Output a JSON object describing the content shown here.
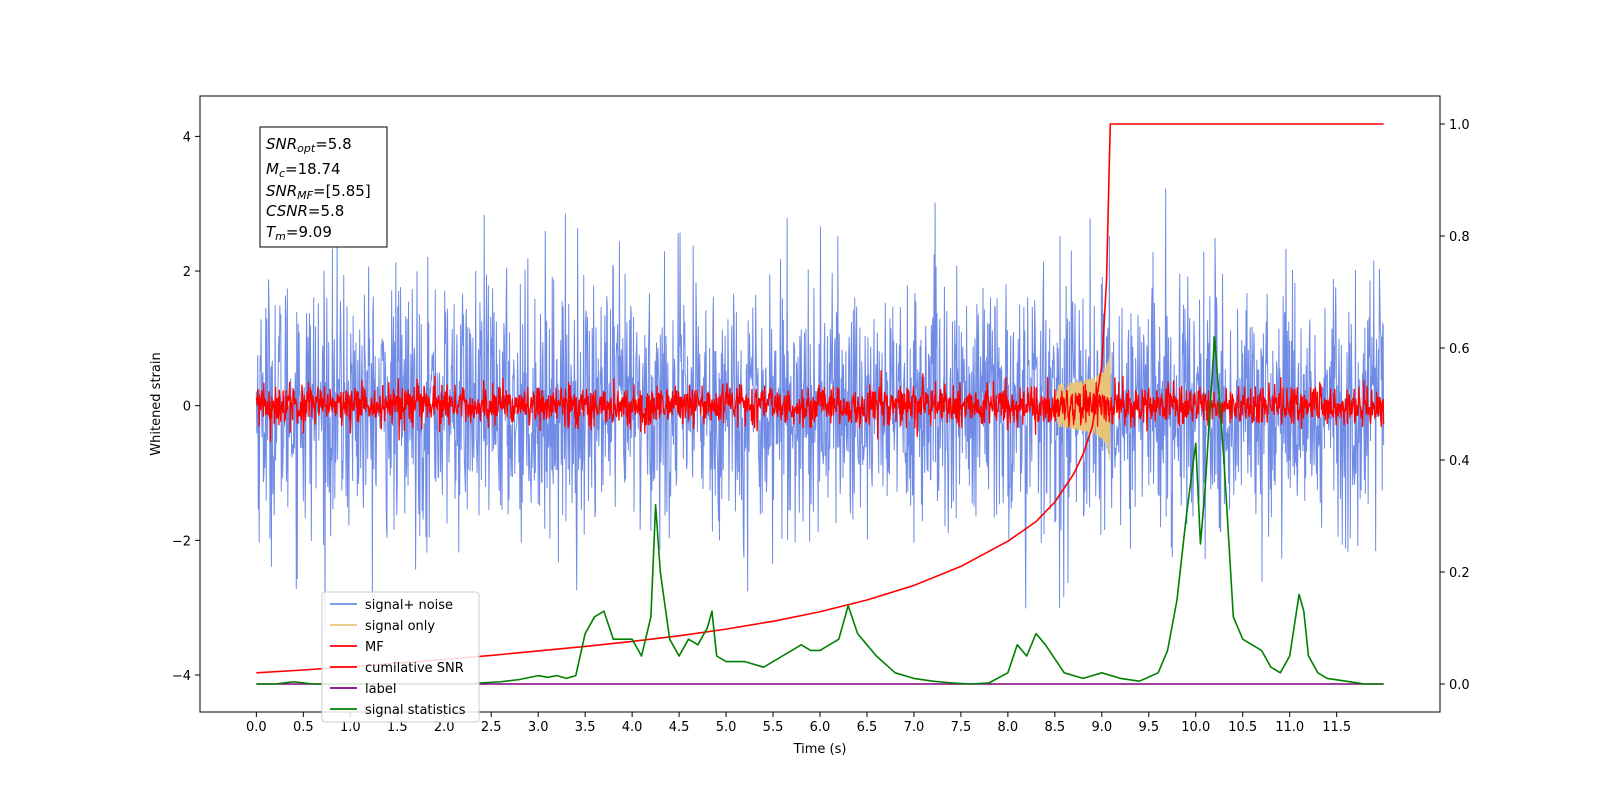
{
  "chart_data": {
    "type": "line",
    "xlabel": "Time (s)",
    "ylabel": "Whitened strain",
    "xlim": [
      -0.6,
      12.6
    ],
    "ylim": [
      -4.55,
      4.6
    ],
    "y2lim": [
      -0.05,
      1.05
    ],
    "x_ticks": [
      0.0,
      0.5,
      1.0,
      1.5,
      2.0,
      2.5,
      3.0,
      3.5,
      4.0,
      4.5,
      5.0,
      5.5,
      6.0,
      6.5,
      7.0,
      7.5,
      8.0,
      8.5,
      9.0,
      9.5,
      10.0,
      10.5,
      11.0,
      11.5
    ],
    "x_tick_labels": [
      "0.0",
      "0.5",
      "1.0",
      "1.5",
      "2.0",
      "2.5",
      "3.0",
      "3.5",
      "4.0",
      "4.5",
      "5.0",
      "5.5",
      "6.0",
      "6.5",
      "7.0",
      "7.5",
      "8.0",
      "8.5",
      "9.0",
      "9.5",
      "10.0",
      "10.5",
      "11.0",
      "11.5"
    ],
    "y_ticks": [
      -4,
      -2,
      0,
      2,
      4
    ],
    "y_tick_labels": [
      "−4",
      "−2",
      "0",
      "2",
      "4"
    ],
    "y2_ticks": [
      0.0,
      0.2,
      0.4,
      0.6,
      0.8,
      1.0
    ],
    "y2_tick_labels": [
      "0.0",
      "0.2",
      "0.4",
      "0.6",
      "0.8",
      "1.0"
    ],
    "grid": false,
    "legend_position": "lower-left",
    "series": [
      {
        "name": "signal+ noise",
        "color": "#6f8be6",
        "axis": "left",
        "kind": "noise",
        "x_range": [
          0.0,
          12.0
        ],
        "amplitude_std": 0.95
      },
      {
        "name": "signal only",
        "color": "#e8c47a",
        "axis": "left",
        "kind": "chirp",
        "x_range": [
          8.5,
          9.09
        ],
        "peak_amplitude": 1.1
      },
      {
        "name": "MF",
        "color": "#ff0000",
        "axis": "left",
        "kind": "noise",
        "x_range": [
          0.0,
          12.0
        ],
        "amplitude_std": 0.15
      },
      {
        "name": "cumilative SNR",
        "color": "#ff0000",
        "axis": "right",
        "kind": "line",
        "x": [
          0.0,
          0.5,
          1.0,
          1.5,
          2.0,
          2.5,
          3.0,
          3.5,
          4.0,
          4.5,
          5.0,
          5.5,
          6.0,
          6.5,
          7.0,
          7.5,
          8.0,
          8.3,
          8.5,
          8.7,
          8.8,
          8.9,
          9.0,
          9.05,
          9.09,
          12.0
        ],
        "y": [
          0.02,
          0.025,
          0.031,
          0.037,
          0.044,
          0.051,
          0.059,
          0.067,
          0.076,
          0.086,
          0.098,
          0.112,
          0.129,
          0.15,
          0.176,
          0.21,
          0.255,
          0.29,
          0.325,
          0.375,
          0.41,
          0.46,
          0.57,
          0.72,
          1.0,
          1.0
        ]
      },
      {
        "name": "label",
        "color": "#800080",
        "axis": "right",
        "kind": "line",
        "x": [
          0.0,
          12.0
        ],
        "y": [
          0.0,
          0.0
        ]
      },
      {
        "name": "signal statistics",
        "color": "#008000",
        "axis": "right",
        "kind": "line",
        "x": [
          0.0,
          0.2,
          0.4,
          0.6,
          0.8,
          1.0,
          1.2,
          1.4,
          1.6,
          1.8,
          2.0,
          2.2,
          2.4,
          2.6,
          2.8,
          3.0,
          3.1,
          3.2,
          3.3,
          3.4,
          3.5,
          3.6,
          3.7,
          3.8,
          3.9,
          4.0,
          4.1,
          4.2,
          4.25,
          4.3,
          4.4,
          4.5,
          4.6,
          4.7,
          4.8,
          4.85,
          4.9,
          5.0,
          5.2,
          5.4,
          5.6,
          5.7,
          5.8,
          5.9,
          6.0,
          6.2,
          6.3,
          6.4,
          6.5,
          6.6,
          6.8,
          7.0,
          7.2,
          7.4,
          7.6,
          7.8,
          8.0,
          8.1,
          8.2,
          8.3,
          8.4,
          8.6,
          8.8,
          9.0,
          9.2,
          9.4,
          9.6,
          9.7,
          9.8,
          9.9,
          10.0,
          10.05,
          10.1,
          10.2,
          10.3,
          10.4,
          10.5,
          10.6,
          10.7,
          10.8,
          10.9,
          11.0,
          11.1,
          11.15,
          11.2,
          11.3,
          11.4,
          11.6,
          11.8,
          12.0
        ],
        "y": [
          0.0,
          0.0,
          0.004,
          0.0,
          0.0,
          0.0,
          0.0,
          0.0,
          0.0,
          0.0,
          0.0,
          0.0,
          0.002,
          0.004,
          0.008,
          0.015,
          0.012,
          0.015,
          0.01,
          0.015,
          0.09,
          0.12,
          0.13,
          0.08,
          0.08,
          0.08,
          0.05,
          0.12,
          0.32,
          0.2,
          0.08,
          0.05,
          0.08,
          0.07,
          0.1,
          0.13,
          0.05,
          0.04,
          0.04,
          0.03,
          0.05,
          0.06,
          0.07,
          0.06,
          0.06,
          0.08,
          0.14,
          0.09,
          0.07,
          0.05,
          0.02,
          0.01,
          0.005,
          0.002,
          0.0,
          0.002,
          0.02,
          0.07,
          0.05,
          0.09,
          0.07,
          0.02,
          0.01,
          0.02,
          0.01,
          0.005,
          0.02,
          0.06,
          0.15,
          0.3,
          0.43,
          0.25,
          0.35,
          0.62,
          0.4,
          0.12,
          0.08,
          0.07,
          0.06,
          0.03,
          0.02,
          0.05,
          0.16,
          0.13,
          0.05,
          0.02,
          0.01,
          0.005,
          0.0,
          0.0
        ]
      }
    ],
    "annotations": {
      "snr_opt": {
        "main": "SNR",
        "sub": "opt",
        "value": "=5.8"
      },
      "mc": {
        "main": "M",
        "sub": "c",
        "value": "=18.74"
      },
      "snr_mf": {
        "main": "SNR",
        "sub": "MF",
        "value": "=[5.85]"
      },
      "csnr": {
        "main": "CSNR",
        "value": "=5.8"
      },
      "tm": {
        "main": "T",
        "sub": "m",
        "value": "=9.09"
      }
    }
  }
}
